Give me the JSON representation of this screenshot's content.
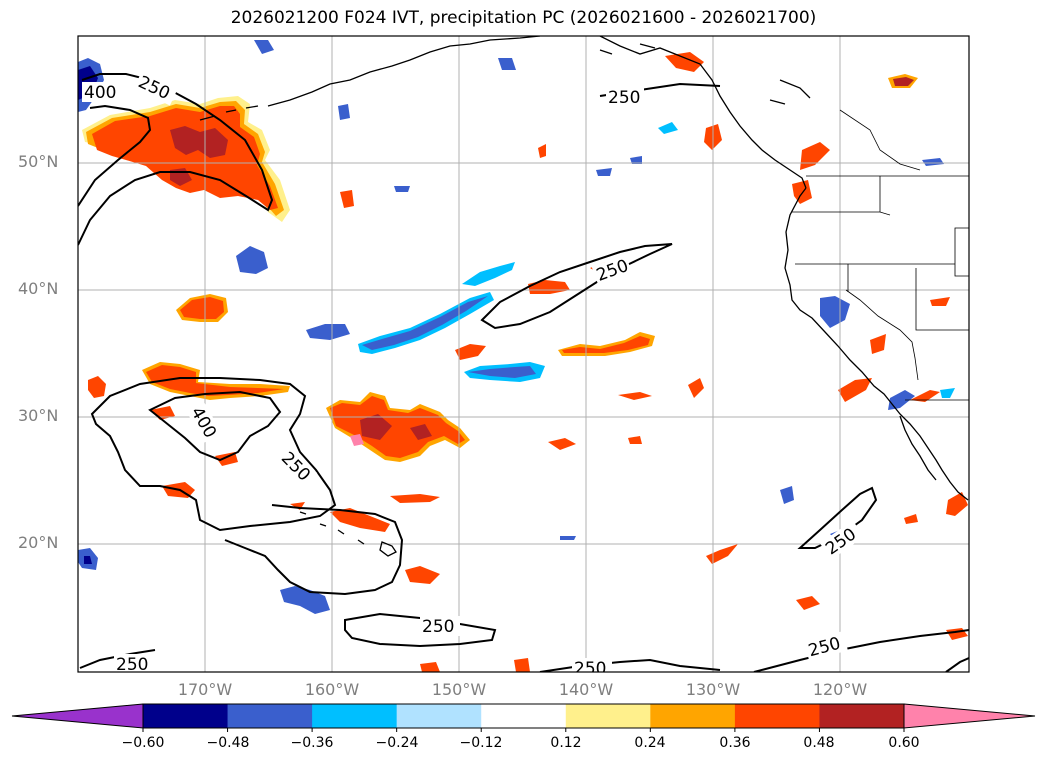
{
  "title": "2026021200 F024 IVT, precipitation PC (2026021600 - 2026021700)",
  "lat_labels": [
    "50°N",
    "40°N",
    "30°N",
    "20°N"
  ],
  "lon_labels": [
    "170°W",
    "160°W",
    "150°W",
    "140°W",
    "130°W",
    "120°W"
  ],
  "contour_labels": {
    "c1": "400",
    "c2": "250",
    "c3": "250",
    "c4": "250",
    "c5": "400",
    "c6": "250",
    "c7": "250",
    "c8": "250",
    "c9": "250",
    "c10": "250",
    "c11": "250"
  },
  "colorbar": {
    "colors": [
      "#9932cc",
      "#00008b",
      "#3a5fcd",
      "#00bfff",
      "#b0e2ff",
      "#ffffff",
      "#fff08c",
      "#ffa500",
      "#ff4500",
      "#b22222",
      "#ff82ab"
    ],
    "ticks": [
      "−0.60",
      "−0.48",
      "−0.36",
      "−0.24",
      "−0.12",
      "0.12",
      "0.24",
      "0.36",
      "0.48",
      "0.60"
    ]
  },
  "colors": {
    "gridline": "#b0b0b0",
    "coast": "#000000",
    "axis_text": "#7f7f7f"
  }
}
